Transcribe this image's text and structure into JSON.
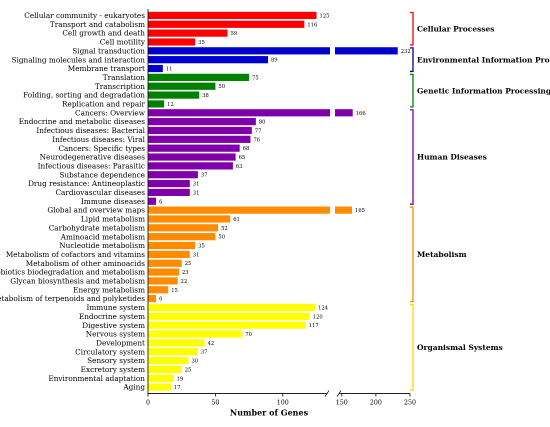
{
  "chart_data": {
    "type": "bar",
    "orientation": "horizontal",
    "xlabel": "Number of Genes",
    "ylabel": "",
    "title": "",
    "axis_break": {
      "from": 135,
      "to": 140
    },
    "xlim": [
      0,
      250
    ],
    "ticks": [
      {
        "value": 0,
        "label": "0"
      },
      {
        "value": 50,
        "label": "50"
      },
      {
        "value": 100,
        "label": "100"
      },
      {
        "value": 150,
        "label": "150"
      },
      {
        "value": 200,
        "label": "200"
      },
      {
        "value": 250,
        "label": "250"
      }
    ],
    "groups": [
      {
        "name": "Cellular Processes",
        "color": "#ff0000",
        "bracket_color": "#ff0000",
        "items": [
          {
            "label": "Cellular community - eukaryotes",
            "value": 125
          },
          {
            "label": "Transport and catabolism",
            "value": 116
          },
          {
            "label": "Cell growth and death",
            "value": 59
          },
          {
            "label": "Cell motility",
            "value": 35
          }
        ]
      },
      {
        "name": "Environmental Information Processing",
        "color": "#0000cc",
        "bracket_color": "#000099",
        "items": [
          {
            "label": "Signal transduction",
            "value": 232
          },
          {
            "label": "Signaling molecules and interaction",
            "value": 89
          },
          {
            "label": "Membrane transport",
            "value": 11
          }
        ]
      },
      {
        "name": "Genetic Information Processing",
        "color": "#008000",
        "bracket_color": "#008000",
        "items": [
          {
            "label": "Translation",
            "value": 75
          },
          {
            "label": "Transcription",
            "value": 50
          },
          {
            "label": "Folding, sorting and degradation",
            "value": 38
          },
          {
            "label": "Replication and repair",
            "value": 12
          }
        ]
      },
      {
        "name": "Human Diseases",
        "color": "#7f00a8",
        "bracket_color": "#7f00a8",
        "items": [
          {
            "label": "Cancers: Overview",
            "value": 166
          },
          {
            "label": "Endocrine and metabolic diseases",
            "value": 80
          },
          {
            "label": "Infectious diseases: Bacterial",
            "value": 77
          },
          {
            "label": "Infectious diseases: Viral",
            "value": 76
          },
          {
            "label": "Cancers: Specific types",
            "value": 68
          },
          {
            "label": "Neurodegenerative diseases",
            "value": 65
          },
          {
            "label": "Infectious diseases: Parasitic",
            "value": 63
          },
          {
            "label": "Substance dependence",
            "value": 37
          },
          {
            "label": "Drug resistance: Antineoplastic",
            "value": 31
          },
          {
            "label": "Cardiovascular diseases",
            "value": 31
          },
          {
            "label": "Immune diseases",
            "value": 6
          }
        ]
      },
      {
        "name": "Metabolism",
        "color": "#ff8c00",
        "bracket_color": "#ff8c00",
        "items": [
          {
            "label": "Global and overview maps",
            "value": 165
          },
          {
            "label": "Lipid metabolism",
            "value": 61
          },
          {
            "label": "Carbohydrate metabolism",
            "value": 52
          },
          {
            "label": "Aminoacid metabolism",
            "value": 50
          },
          {
            "label": "Nucleotide metabolism",
            "value": 35
          },
          {
            "label": "Metabolism of cofactors and vitamins",
            "value": 31
          },
          {
            "label": "Metabolism of other aminoacids",
            "value": 25
          },
          {
            "label": "Xenobiotics biodegradation and metabolism",
            "value": 23
          },
          {
            "label": "Glycan biosynthesis and metabolism",
            "value": 22
          },
          {
            "label": "Energy metabolism",
            "value": 15
          },
          {
            "label": "Metabolism of terpenoids and polyketides",
            "value": 6
          }
        ]
      },
      {
        "name": "Organismal Systems",
        "color": "#ffff00",
        "bracket_color": "#ffd700",
        "items": [
          {
            "label": "Immune system",
            "value": 124
          },
          {
            "label": "Endocrine system",
            "value": 120
          },
          {
            "label": "Digestive system",
            "value": 117
          },
          {
            "label": "Nervous system",
            "value": 70
          },
          {
            "label": "Development",
            "value": 42
          },
          {
            "label": "Circulatory system",
            "value": 37
          },
          {
            "label": "Sensory system",
            "value": 30
          },
          {
            "label": "Excretory system",
            "value": 25
          },
          {
            "label": "Environmental adaptation",
            "value": 19
          },
          {
            "label": "Aging",
            "value": 17
          }
        ]
      }
    ]
  }
}
